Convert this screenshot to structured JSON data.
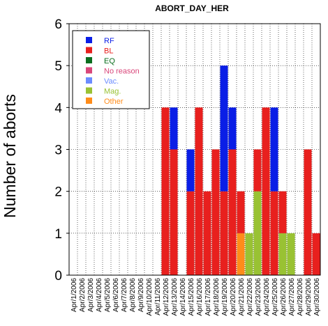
{
  "chart_data": {
    "type": "bar",
    "stacked": true,
    "title": "ABORT_DAY_HER",
    "xlabel": "",
    "ylabel": "Number of aborts",
    "ylim": [
      0,
      6
    ],
    "yticks": [
      0,
      1,
      2,
      3,
      4,
      5,
      6
    ],
    "grid": true,
    "legend_position": "top-left",
    "categories": [
      "Apr/1/2006",
      "Apr/2/2006",
      "Apr/3/2006",
      "Apr/4/2006",
      "Apr/5/2006",
      "Apr/6/2006",
      "Apr/7/2006",
      "Apr/8/2006",
      "Apr/9/2006",
      "Apr/10/2006",
      "Apr/11/2006",
      "Apr/12/2006",
      "Apr/13/2006",
      "Apr/14/2006",
      "Apr/15/2006",
      "Apr/16/2006",
      "Apr/17/2006",
      "Apr/18/2006",
      "Apr/19/2006",
      "Apr/20/2006",
      "Apr/21/2006",
      "Apr/22/2006",
      "Apr/23/2006",
      "Apr/24/2006",
      "Apr/25/2006",
      "Apr/26/2006",
      "Apr/27/2006",
      "Apr/28/2006",
      "Apr/29/2006",
      "Apr/30/2006"
    ],
    "series": [
      {
        "name": "Other",
        "color": "#ff8c1a",
        "values": [
          0,
          0,
          0,
          0,
          0,
          0,
          0,
          0,
          0,
          0,
          0,
          0,
          0,
          0,
          0,
          0,
          0,
          0,
          0,
          0,
          1,
          0,
          0,
          0,
          0,
          0,
          0,
          0,
          0,
          0
        ]
      },
      {
        "name": "Mag.",
        "color": "#99c233",
        "values": [
          0,
          0,
          0,
          0,
          0,
          0,
          0,
          0,
          0,
          0,
          0,
          0,
          0,
          0,
          0,
          0,
          0,
          0,
          0,
          0,
          0,
          1,
          2,
          0,
          0,
          1,
          1,
          0,
          0,
          0
        ]
      },
      {
        "name": "Vac.",
        "color": "#6b8cff",
        "values": [
          0,
          0,
          0,
          0,
          0,
          0,
          0,
          0,
          0,
          0,
          0,
          0,
          0,
          0,
          0,
          0,
          0,
          0,
          0,
          0,
          0,
          0,
          0,
          0,
          0,
          0,
          0,
          0,
          0,
          0
        ]
      },
      {
        "name": "No reason",
        "color": "#d9467a",
        "values": [
          0,
          0,
          0,
          0,
          0,
          0,
          0,
          0,
          0,
          0,
          0,
          0,
          0,
          0,
          0,
          0,
          0,
          0,
          0,
          0,
          0,
          0,
          0,
          0,
          0,
          0,
          0,
          0,
          0,
          0
        ]
      },
      {
        "name": "EQ",
        "color": "#0a6e1e",
        "values": [
          0,
          0,
          0,
          0,
          0,
          0,
          0,
          0,
          0,
          0,
          0,
          0,
          0,
          0,
          0,
          0,
          0,
          0,
          0,
          0,
          0,
          0,
          0,
          0,
          0,
          0,
          0,
          0,
          0,
          0
        ]
      },
      {
        "name": "BL",
        "color": "#e8201e",
        "values": [
          0,
          0,
          0,
          0,
          0,
          0,
          0,
          0,
          0,
          0,
          0,
          4,
          3,
          0,
          2,
          4,
          2,
          3,
          2,
          3,
          1,
          0,
          1,
          4,
          2,
          1,
          0,
          0,
          3,
          1
        ]
      },
      {
        "name": "RF",
        "color": "#0a1ee6",
        "values": [
          0,
          0,
          0,
          0,
          0,
          0,
          0,
          0,
          0,
          0,
          0,
          0,
          1,
          0,
          1,
          0,
          0,
          0,
          3,
          1,
          0,
          0,
          0,
          0,
          2,
          0,
          0,
          0,
          0,
          0
        ]
      }
    ],
    "legend_order": [
      "RF",
      "BL",
      "EQ",
      "No reason",
      "Vac.",
      "Mag.",
      "Other"
    ]
  }
}
